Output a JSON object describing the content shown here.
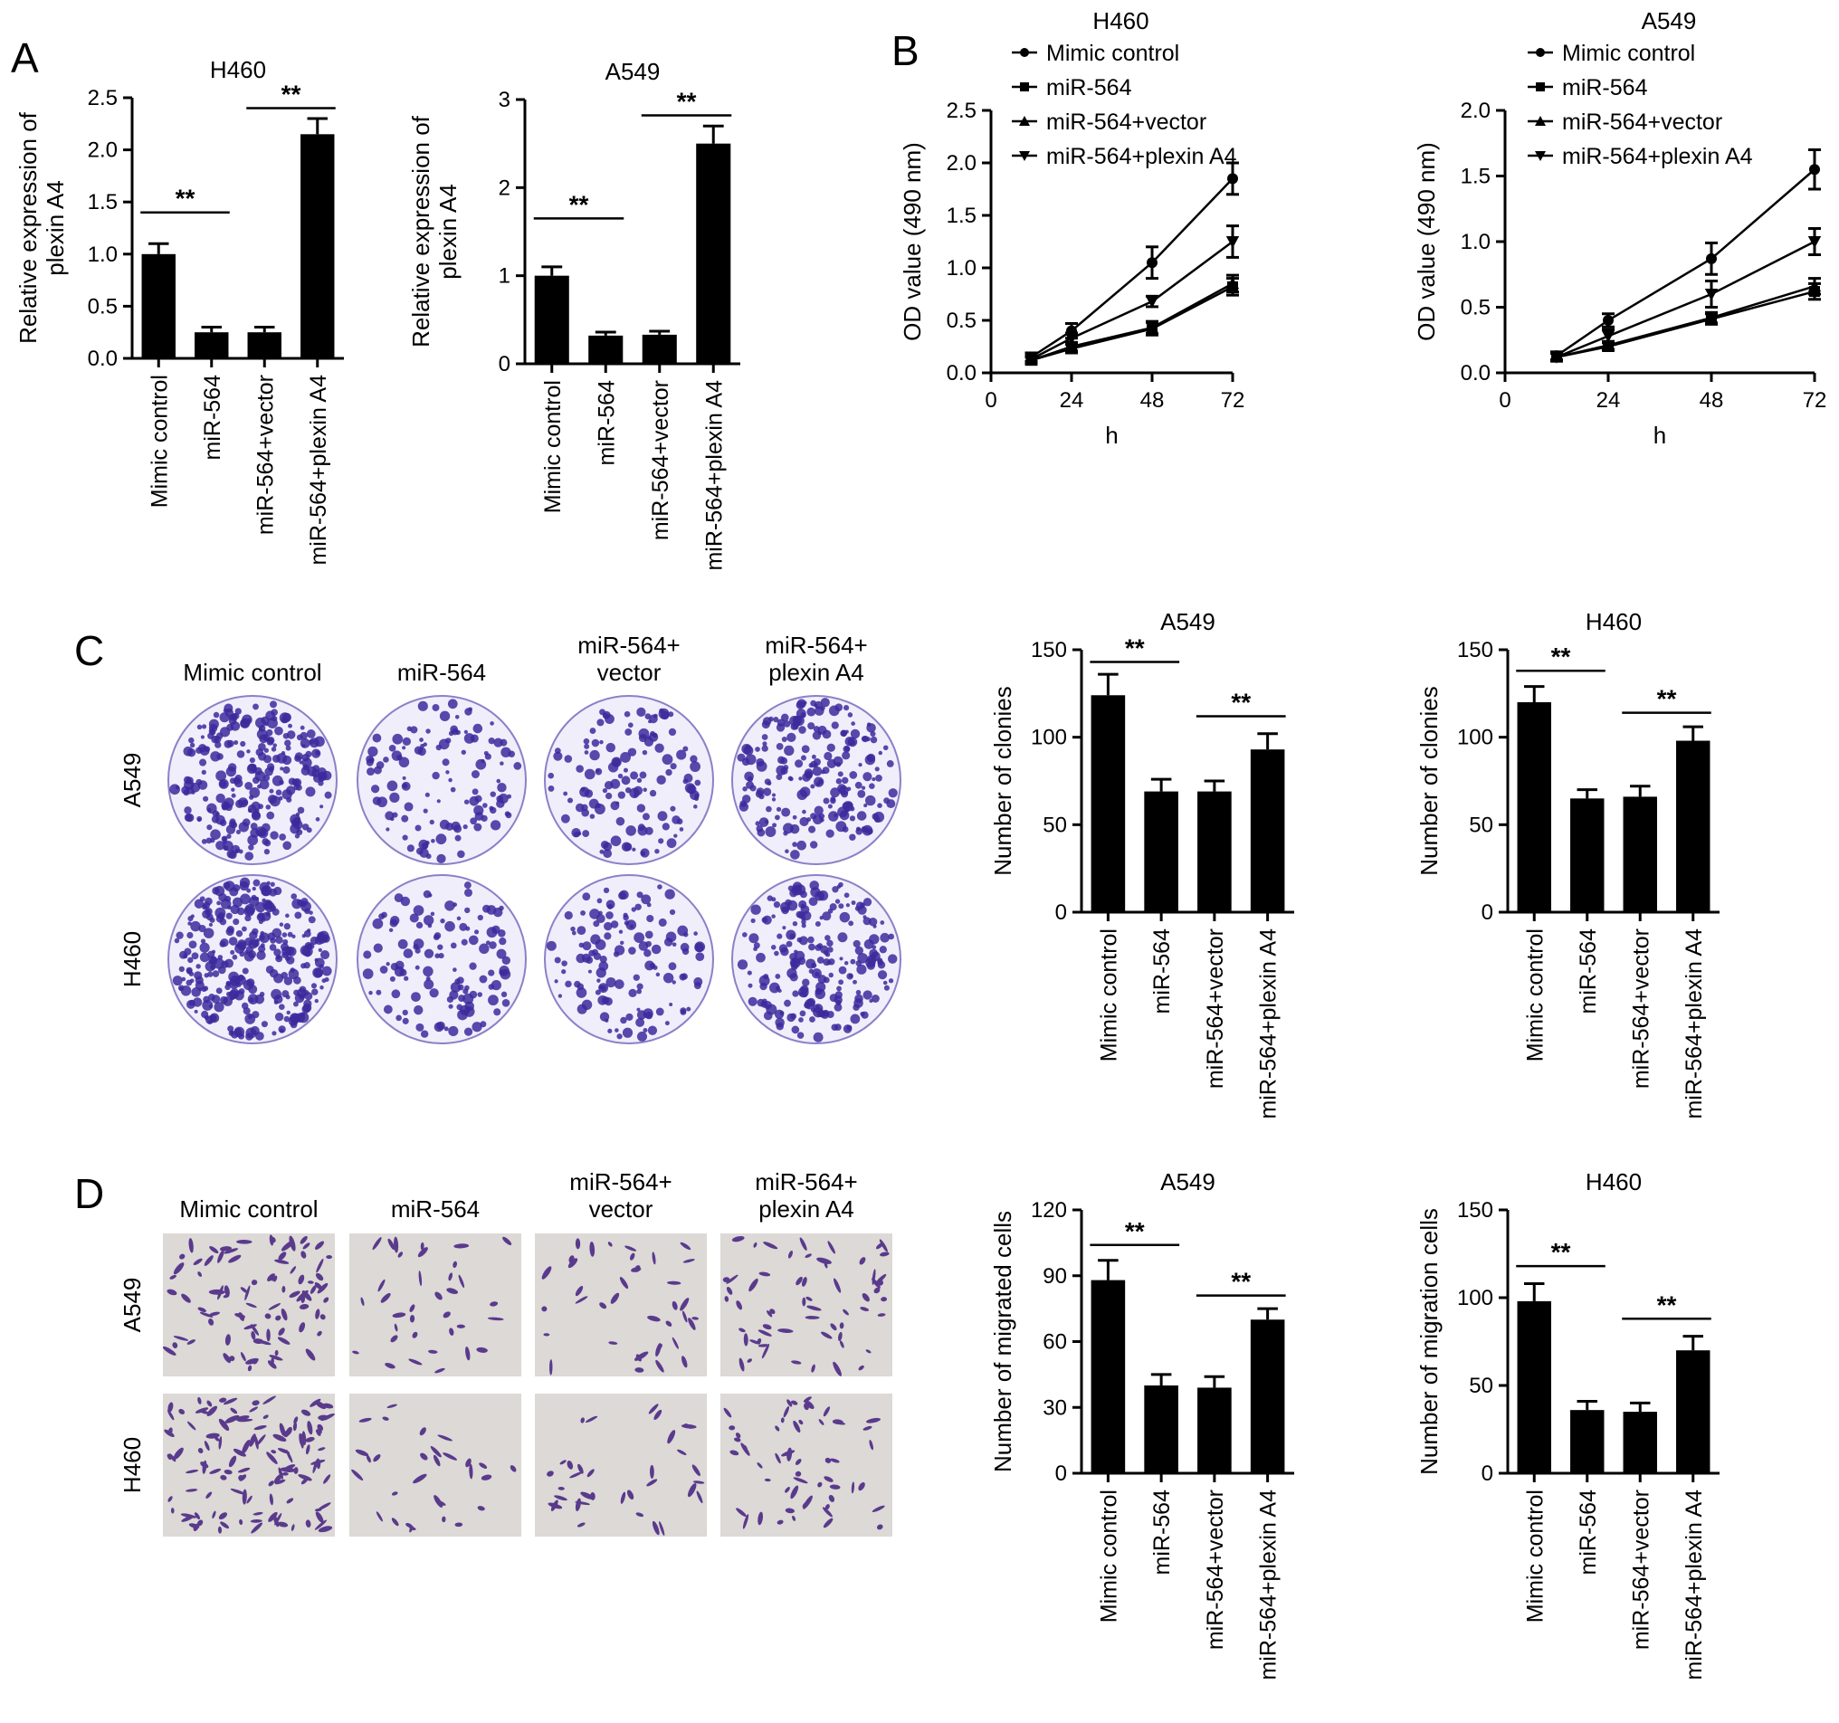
{
  "panel_letters": [
    "A",
    "B",
    "C",
    "D"
  ],
  "groups": [
    "Mimic control",
    "miR-564",
    "miR-564+vector",
    "miR-564+plexin A4"
  ],
  "image_panels": {
    "C": {
      "col_headers": [
        [
          "Mimic control"
        ],
        [
          "miR-564"
        ],
        [
          "miR-564+",
          "vector"
        ],
        [
          "miR-564+",
          "plexin A4"
        ]
      ],
      "row_labels": [
        "A549",
        "H460"
      ],
      "style": "colony"
    },
    "D": {
      "col_headers": [
        [
          "Mimic control"
        ],
        [
          "miR-564"
        ],
        [
          "miR-564+",
          "vector"
        ],
        [
          "miR-564+",
          "plexin A4"
        ]
      ],
      "row_labels": [
        "A549",
        "H460"
      ],
      "style": "migration"
    }
  },
  "colors": {
    "bar": "#000000",
    "colony_stain": "#3c2a9c",
    "plate_bg": "#f1eefb",
    "migration_bg": "#dcd9d6",
    "migration_cell": "#5a3a8c"
  },
  "chart_data": [
    {
      "id": "A-H460",
      "panel": "A",
      "type": "bar",
      "title": "H460",
      "ylabel": [
        "Relative expression of",
        "plexin A4"
      ],
      "categories": [
        "Mimic control",
        "miR-564",
        "miR-564+vector",
        "miR-564+plexin A4"
      ],
      "values": [
        1.0,
        0.25,
        0.25,
        2.15
      ],
      "errors": [
        0.1,
        0.05,
        0.05,
        0.15
      ],
      "ylim": [
        0,
        2.5
      ],
      "yticks": [
        "0.0",
        "0.5",
        "1.0",
        "1.5",
        "2.0",
        "2.5"
      ],
      "significance": [
        {
          "from": 0,
          "to": 1,
          "y": 1.4,
          "label": "**"
        },
        {
          "from": 2,
          "to": 3,
          "y": 2.4,
          "label": "**"
        }
      ]
    },
    {
      "id": "A-A549",
      "panel": "A",
      "type": "bar",
      "title": "A549",
      "ylabel": [
        "Relative expression of",
        "plexin A4"
      ],
      "categories": [
        "Mimic control",
        "miR-564",
        "miR-564+vector",
        "miR-564+plexin A4"
      ],
      "values": [
        1.0,
        0.32,
        0.33,
        2.5
      ],
      "errors": [
        0.1,
        0.04,
        0.04,
        0.2
      ],
      "ylim": [
        0,
        3
      ],
      "yticks": [
        "0",
        "1",
        "2",
        "3"
      ],
      "significance": [
        {
          "from": 0,
          "to": 1,
          "y": 1.65,
          "label": "**"
        },
        {
          "from": 2,
          "to": 3,
          "y": 2.82,
          "label": "**"
        }
      ]
    },
    {
      "id": "B-H460",
      "panel": "B",
      "type": "line",
      "title": "H460",
      "ylabel": "OD value (490 nm)",
      "xlabel": "h",
      "x": [
        12,
        24,
        48,
        72
      ],
      "xlim": [
        0,
        72
      ],
      "xticks": [
        "0",
        "24",
        "48",
        "72"
      ],
      "ylim": [
        0,
        2.5
      ],
      "yticks": [
        "0.0",
        "0.5",
        "1.0",
        "1.5",
        "2.0",
        "2.5"
      ],
      "series": [
        {
          "name": "Mimic control",
          "marker": "circle",
          "values": [
            0.15,
            0.4,
            1.05,
            1.85
          ],
          "errors": [
            0.04,
            0.07,
            0.15,
            0.15
          ]
        },
        {
          "name": "miR-564",
          "marker": "square",
          "values": [
            0.12,
            0.23,
            0.42,
            0.82
          ],
          "errors": [
            0.03,
            0.04,
            0.06,
            0.08
          ]
        },
        {
          "name": "miR-564+vector",
          "marker": "triangle-up",
          "values": [
            0.12,
            0.25,
            0.43,
            0.85
          ],
          "errors": [
            0.03,
            0.04,
            0.06,
            0.08
          ]
        },
        {
          "name": "miR-564+plexin A4",
          "marker": "triangle-down",
          "values": [
            0.13,
            0.33,
            0.68,
            1.25
          ],
          "errors": [
            0.03,
            0.05,
            0.05,
            0.15
          ]
        }
      ]
    },
    {
      "id": "B-A549",
      "panel": "B",
      "type": "line",
      "title": "A549",
      "ylabel": "OD value (490 nm)",
      "xlabel": "h",
      "x": [
        12,
        24,
        48,
        72
      ],
      "xlim": [
        0,
        72
      ],
      "xticks": [
        "0",
        "24",
        "48",
        "72"
      ],
      "ylim": [
        0,
        2.0
      ],
      "yticks": [
        "0.0",
        "0.5",
        "1.0",
        "1.5",
        "2.0"
      ],
      "series": [
        {
          "name": "Mimic control",
          "marker": "circle",
          "values": [
            0.13,
            0.4,
            0.87,
            1.55
          ],
          "errors": [
            0.03,
            0.05,
            0.12,
            0.15
          ]
        },
        {
          "name": "miR-564",
          "marker": "square",
          "values": [
            0.12,
            0.2,
            0.41,
            0.62
          ],
          "errors": [
            0.03,
            0.03,
            0.04,
            0.06
          ]
        },
        {
          "name": "miR-564+vector",
          "marker": "triangle-up",
          "values": [
            0.12,
            0.21,
            0.42,
            0.66
          ],
          "errors": [
            0.03,
            0.03,
            0.04,
            0.06
          ]
        },
        {
          "name": "miR-564+plexin A4",
          "marker": "triangle-down",
          "values": [
            0.12,
            0.28,
            0.6,
            1.0
          ],
          "errors": [
            0.03,
            0.05,
            0.1,
            0.1
          ]
        }
      ]
    },
    {
      "id": "C-A549",
      "panel": "C",
      "type": "bar",
      "title": "A549",
      "ylabel": "Number of clonies",
      "categories": [
        "Mimic control",
        "miR-564",
        "miR-564+vector",
        "miR-564+plexin A4"
      ],
      "values": [
        124,
        69,
        69,
        93
      ],
      "errors": [
        12,
        7,
        6,
        9
      ],
      "ylim": [
        0,
        150
      ],
      "yticks": [
        "0",
        "50",
        "100",
        "150"
      ],
      "significance": [
        {
          "from": 0,
          "to": 1,
          "y": 143,
          "label": "**"
        },
        {
          "from": 2,
          "to": 3,
          "y": 112,
          "label": "**"
        }
      ]
    },
    {
      "id": "C-H460",
      "panel": "C",
      "type": "bar",
      "title": "H460",
      "ylabel": "Number of clonies",
      "categories": [
        "Mimic control",
        "miR-564",
        "miR-564+vector",
        "miR-564+plexin A4"
      ],
      "values": [
        120,
        65,
        66,
        98
      ],
      "errors": [
        9,
        5,
        6,
        8
      ],
      "ylim": [
        0,
        150
      ],
      "yticks": [
        "0",
        "50",
        "100",
        "150"
      ],
      "significance": [
        {
          "from": 0,
          "to": 1,
          "y": 138,
          "label": "**"
        },
        {
          "from": 2,
          "to": 3,
          "y": 114,
          "label": "**"
        }
      ]
    },
    {
      "id": "D-A549",
      "panel": "D",
      "type": "bar",
      "title": "A549",
      "ylabel": "Number of migrated cells",
      "categories": [
        "Mimic control",
        "miR-564",
        "miR-564+vector",
        "miR-564+plexin A4"
      ],
      "values": [
        88,
        40,
        39,
        70
      ],
      "errors": [
        9,
        5,
        5,
        5
      ],
      "ylim": [
        0,
        120
      ],
      "yticks": [
        "0",
        "30",
        "60",
        "90",
        "120"
      ],
      "significance": [
        {
          "from": 0,
          "to": 1,
          "y": 104,
          "label": "**"
        },
        {
          "from": 2,
          "to": 3,
          "y": 81,
          "label": "**"
        }
      ]
    },
    {
      "id": "D-H460",
      "panel": "D",
      "type": "bar",
      "title": "H460",
      "ylabel": "Number of migration cells",
      "categories": [
        "Mimic control",
        "miR-564",
        "miR-564+vector",
        "miR-564+plexin A4"
      ],
      "values": [
        98,
        36,
        35,
        70
      ],
      "errors": [
        10,
        5,
        5,
        8
      ],
      "ylim": [
        0,
        150
      ],
      "yticks": [
        "0",
        "50",
        "100",
        "150"
      ],
      "significance": [
        {
          "from": 0,
          "to": 1,
          "y": 118,
          "label": "**"
        },
        {
          "from": 2,
          "to": 3,
          "y": 88,
          "label": "**"
        }
      ]
    }
  ]
}
